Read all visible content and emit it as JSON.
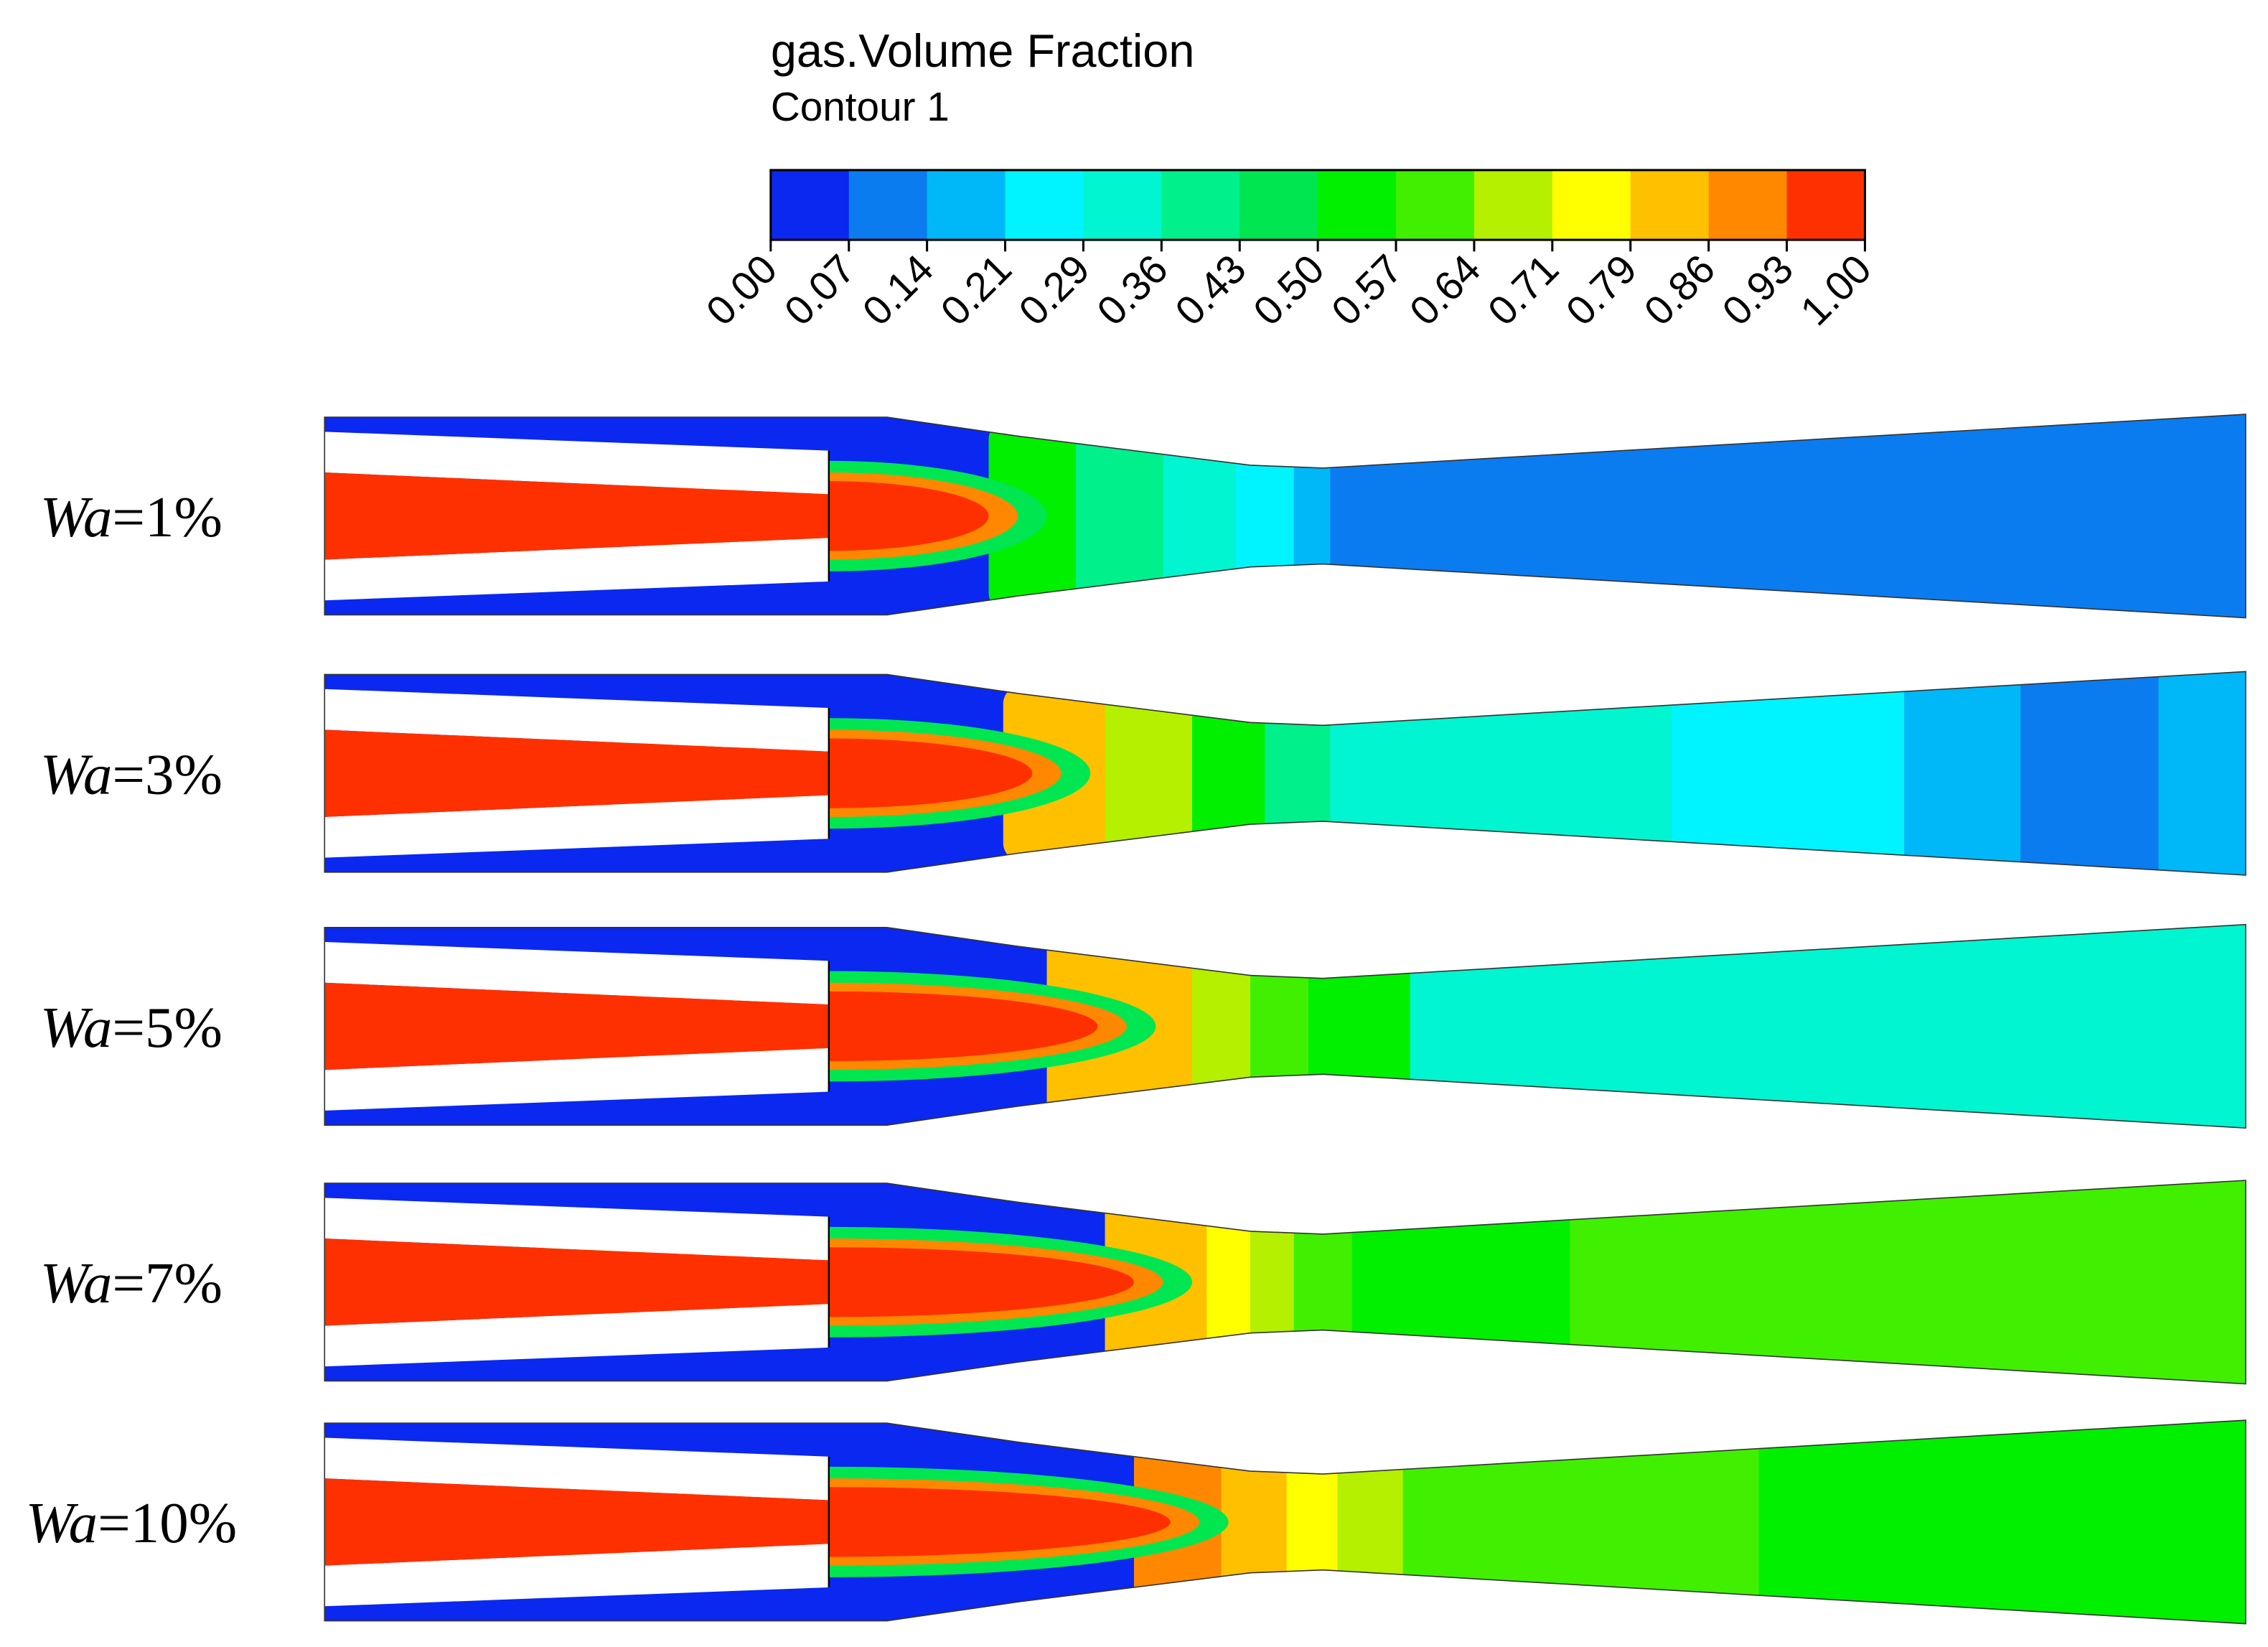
{
  "legend": {
    "title": "gas.Volume Fraction",
    "subtitle": "Contour 1",
    "ticks": [
      "0.00",
      "0.07",
      "0.14",
      "0.21",
      "0.29",
      "0.36",
      "0.43",
      "0.50",
      "0.57",
      "0.64",
      "0.71",
      "0.79",
      "0.86",
      "0.93",
      "1.00"
    ],
    "colors": [
      "#0a28ef",
      "#0a7cf0",
      "#00b8f8",
      "#00f4ff",
      "#00f5d0",
      "#00f08c",
      "#00e650",
      "#00f000",
      "#40f000",
      "#b4f000",
      "#ffff00",
      "#ffc000",
      "#ff8800",
      "#ff3000"
    ]
  },
  "cases": [
    {
      "symbol": "Wa",
      "value": "=1%"
    },
    {
      "symbol": "Wa",
      "value": "=3%"
    },
    {
      "symbol": "Wa",
      "value": "=5%"
    },
    {
      "symbol": "Wa",
      "value": "=7%"
    },
    {
      "symbol": "Wa",
      "value": "=10%"
    }
  ]
}
